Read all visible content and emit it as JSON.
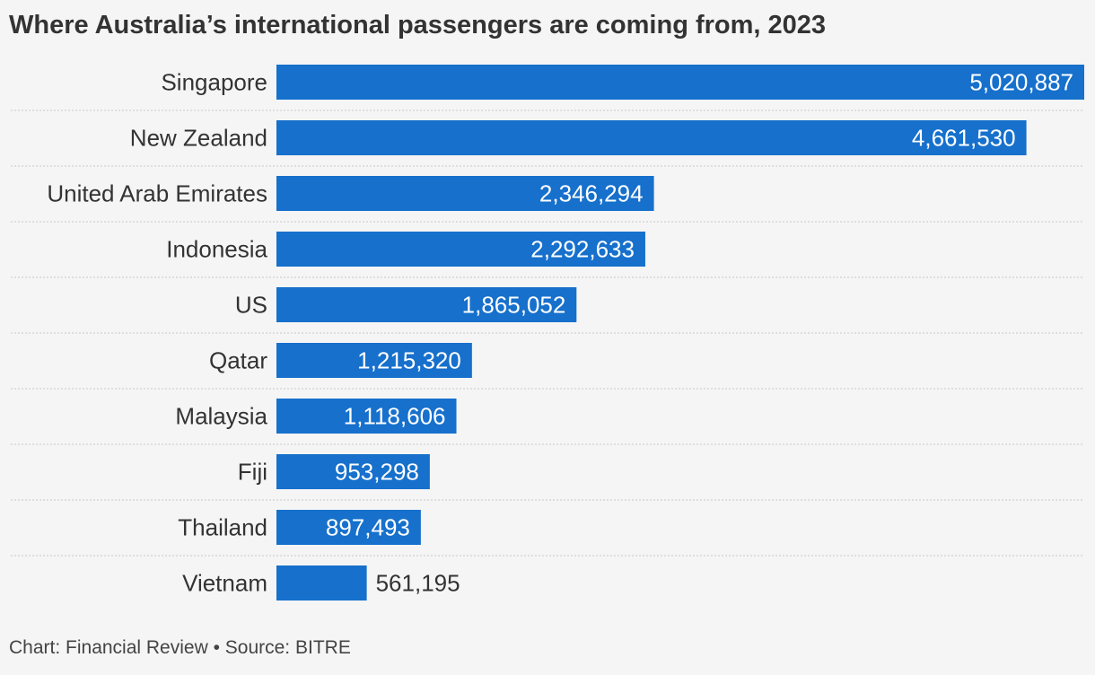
{
  "title": "Where Australia’s international passengers are coming from, 2023",
  "source": "Chart: Financial Review • Source: BITRE",
  "colors": {
    "bar": "#1670cc",
    "background": "#f5f5f5",
    "text": "#333333",
    "grid": "#c8c8c8"
  },
  "chart_data": {
    "type": "bar",
    "orientation": "horizontal",
    "categories": [
      "Singapore",
      "New Zealand",
      "United Arab Emirates",
      "Indonesia",
      "US",
      "Qatar",
      "Malaysia",
      "Fiji",
      "Thailand",
      "Vietnam"
    ],
    "values": [
      5020887,
      4661530,
      2346294,
      2292633,
      1865052,
      1215320,
      1118606,
      953298,
      897493,
      561195
    ],
    "value_labels": [
      "5,020,887",
      "4,661,530",
      "2,346,294",
      "2,292,633",
      "1,865,052",
      "1,215,320",
      "1,118,606",
      "953,298",
      "897,493",
      "561,195"
    ],
    "xlim": [
      0,
      5020887
    ],
    "grid": false
  }
}
